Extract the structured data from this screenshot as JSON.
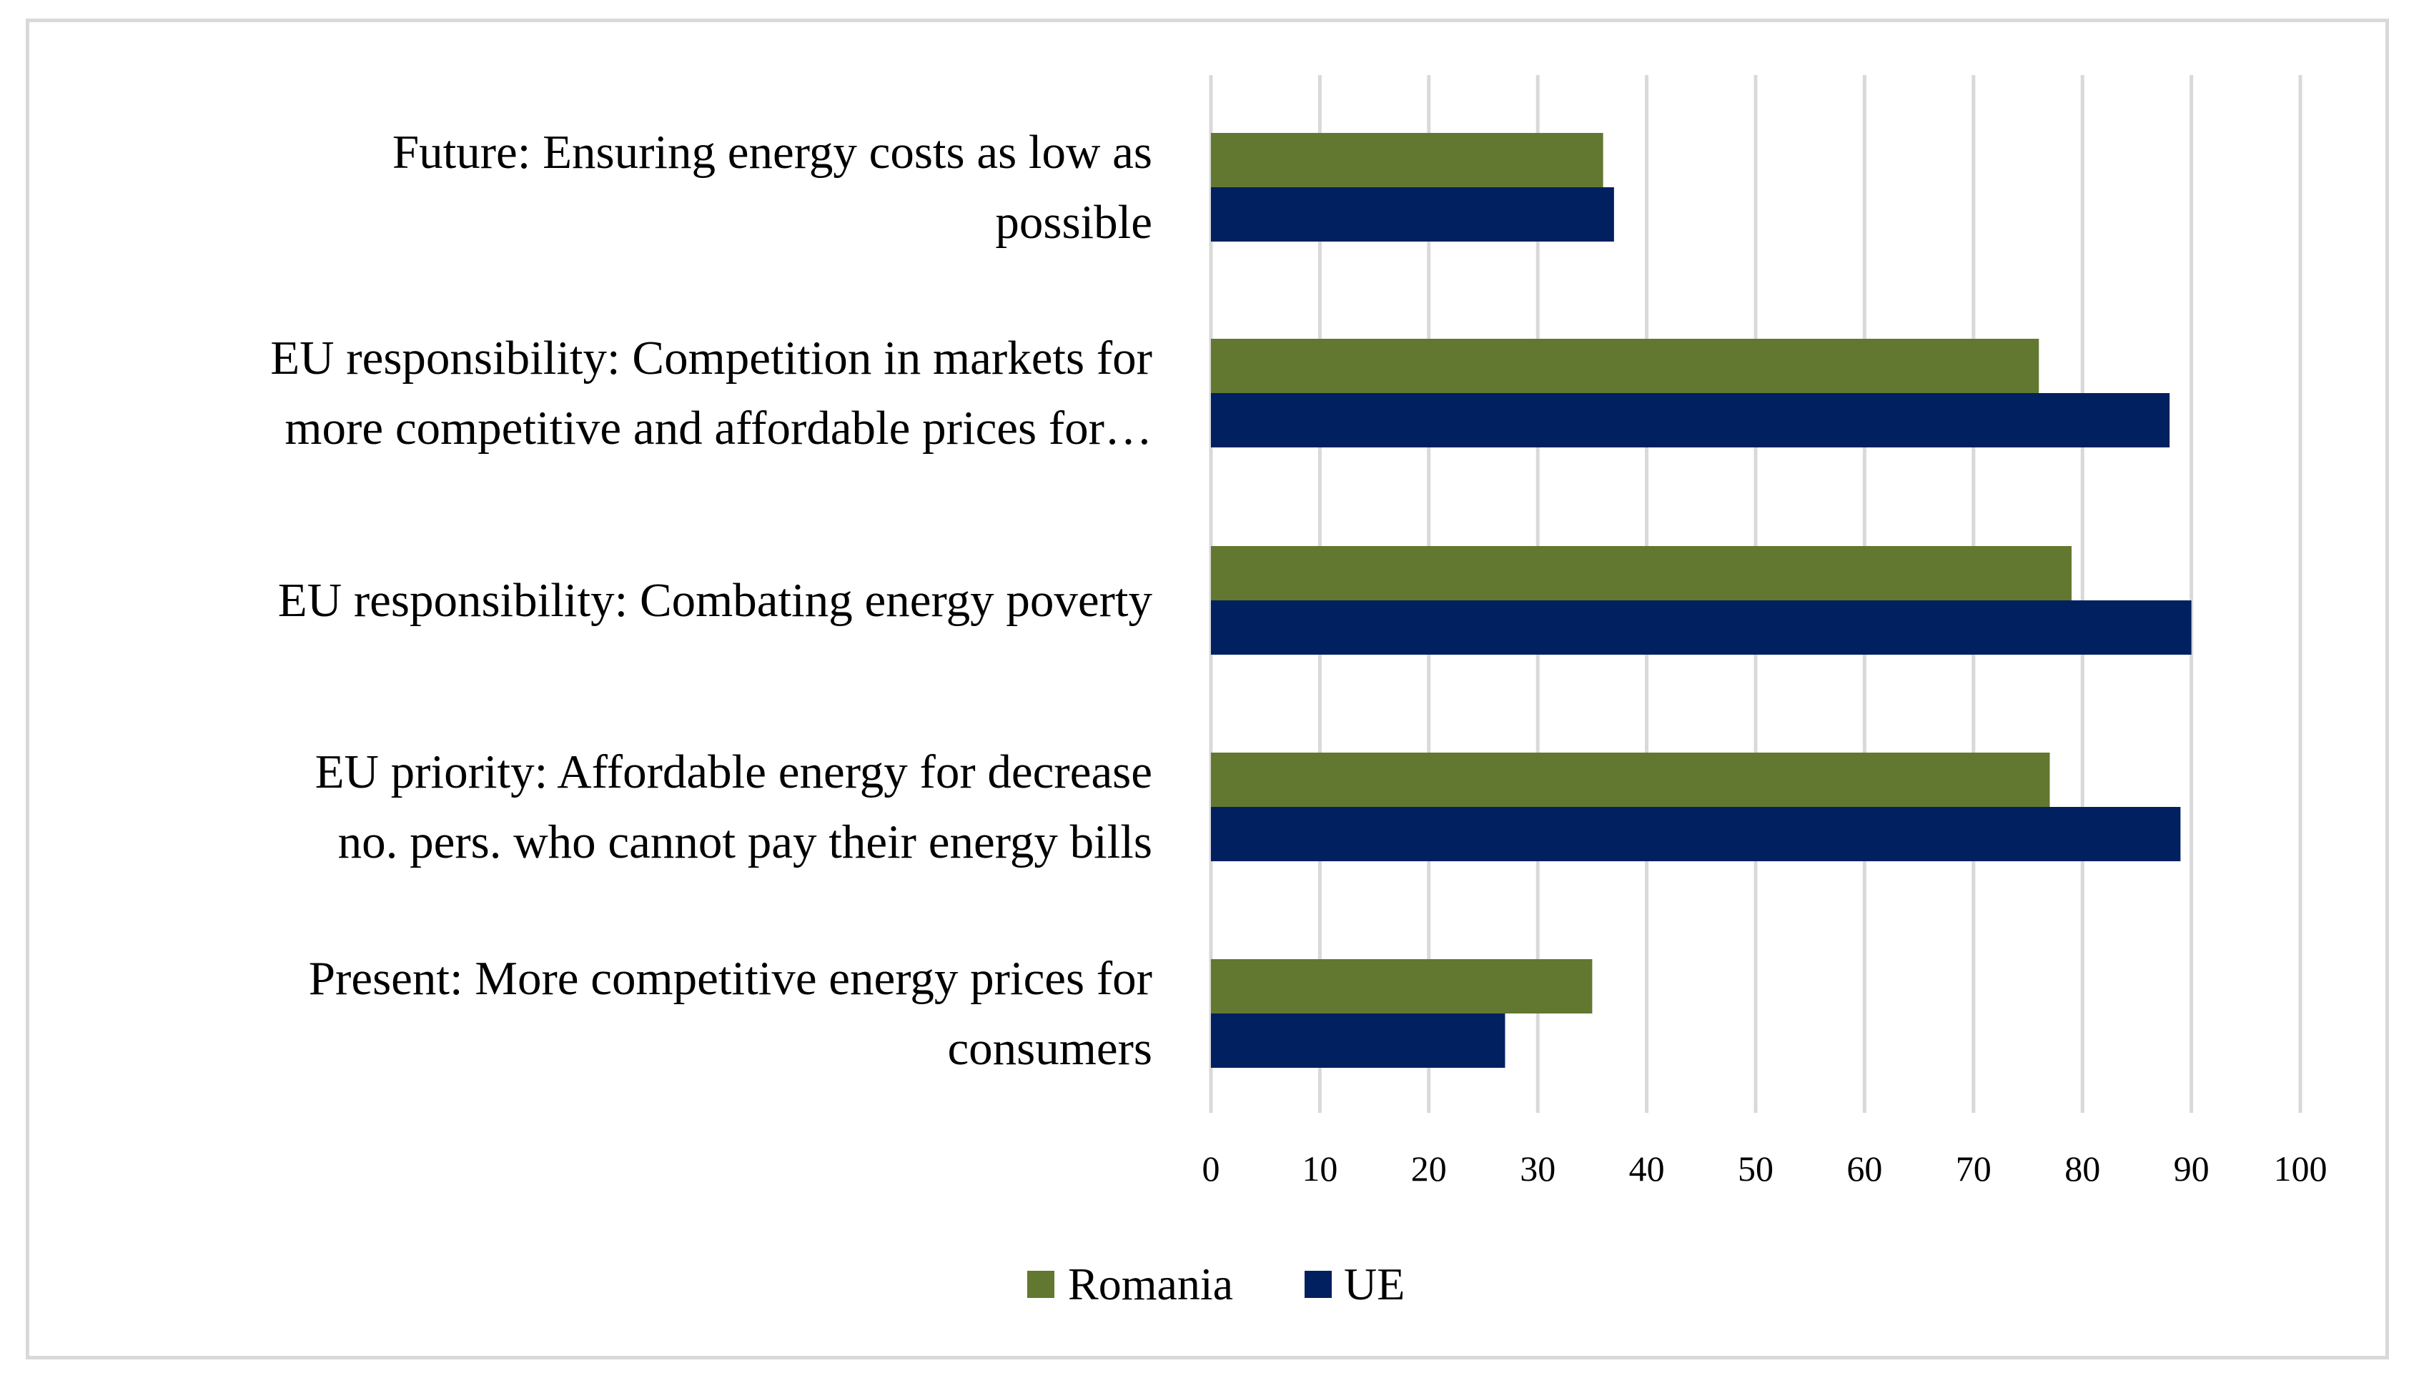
{
  "chart_data": {
    "type": "bar",
    "orientation": "horizontal",
    "title": "",
    "xlabel": "",
    "ylabel": "",
    "xlim": [
      0,
      100
    ],
    "xticks": [
      "0",
      "10",
      "20",
      "30",
      "40",
      "50",
      "60",
      "70",
      "80",
      "90",
      "100"
    ],
    "grid": true,
    "legend_position": "bottom-center",
    "categories": [
      [
        "Future: Ensuring energy costs as low as",
        "possible"
      ],
      [
        "EU responsibility: Competition in markets for",
        "more competitive and affordable prices for…"
      ],
      [
        "EU responsibility: Combating energy poverty"
      ],
      [
        "EU priority: Affordable energy for decrease",
        "no. pers. who cannot pay their energy bills"
      ],
      [
        "Present: More competitive energy prices for",
        "consumers"
      ]
    ],
    "series": [
      {
        "name": "Romania",
        "color": "#62772f",
        "values": [
          36,
          76,
          79,
          77,
          35
        ]
      },
      {
        "name": "UE",
        "color": "#002060",
        "values": [
          37,
          88,
          90,
          89,
          27
        ]
      }
    ]
  }
}
